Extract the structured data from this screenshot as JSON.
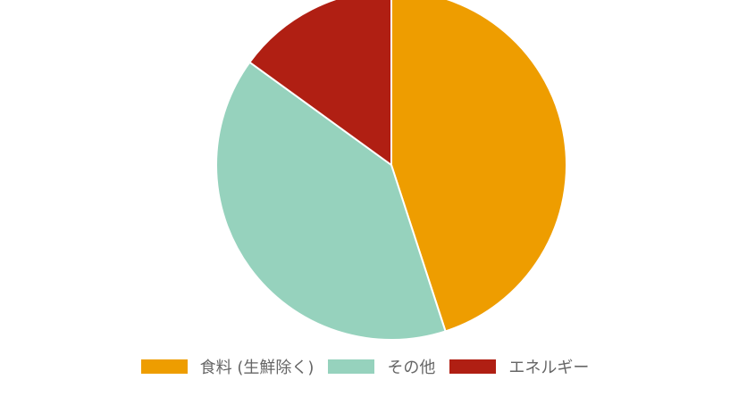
{
  "chart_data": {
    "type": "pie",
    "title": "",
    "start_angle": "top, clockwise",
    "slices": [
      {
        "name": "食料 (生鮮除く)",
        "value": 45,
        "color": "#ee9d00"
      },
      {
        "name": "その他",
        "value": 40,
        "color": "#96d2bd"
      },
      {
        "name": "エネルギー",
        "value": 15,
        "color": "#b01f13"
      }
    ],
    "legend": "bottom"
  }
}
